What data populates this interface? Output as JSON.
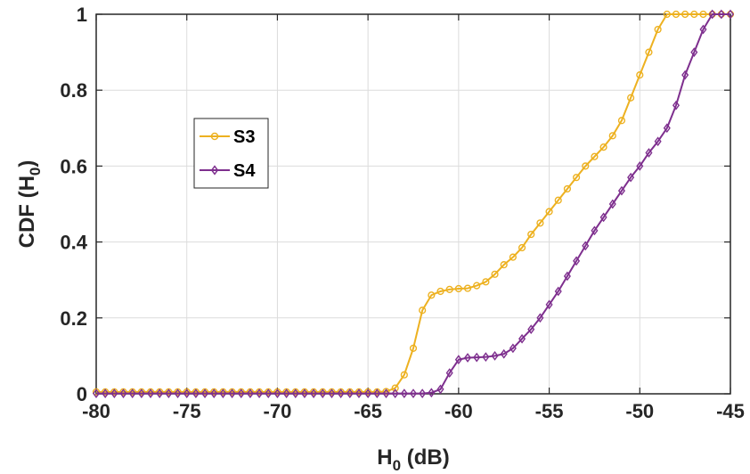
{
  "chart_data": {
    "type": "line",
    "xlabel": "H",
    "xlabel_sub": "0",
    "xlabel_suffix": " (dB)",
    "ylabel": "CDF (H",
    "ylabel_sub": "0",
    "ylabel_suffix": ")",
    "xlim": [
      -80,
      -45
    ],
    "ylim": [
      0,
      1
    ],
    "xticks": [
      "-80",
      "-75",
      "-70",
      "-65",
      "-60",
      "-55",
      "-50",
      "-45"
    ],
    "xtick_values": [
      -80,
      -75,
      -70,
      -65,
      -60,
      -55,
      -50,
      -45
    ],
    "yticks": [
      "0",
      "0.2",
      "0.4",
      "0.6",
      "0.8",
      "1"
    ],
    "ytick_values": [
      0,
      0.2,
      0.4,
      0.6,
      0.8,
      1
    ],
    "grid": true,
    "legend_position": "center-left",
    "series": [
      {
        "name": "S3",
        "color": "#EDB120",
        "marker": "circle",
        "x": [
          -80,
          -79.5,
          -79,
          -78.5,
          -78,
          -77.5,
          -77,
          -76.5,
          -76,
          -75.5,
          -75,
          -74.5,
          -74,
          -73.5,
          -73,
          -72.5,
          -72,
          -71.5,
          -71,
          -70.5,
          -70,
          -69.5,
          -69,
          -68.5,
          -68,
          -67.5,
          -67,
          -66.5,
          -66,
          -65.5,
          -65,
          -64.5,
          -64,
          -63.5,
          -63,
          -62.5,
          -62,
          -61.5,
          -61,
          -60.5,
          -60,
          -59.5,
          -59,
          -58.5,
          -58,
          -57.5,
          -57,
          -56.5,
          -56,
          -55.5,
          -55,
          -54.5,
          -54,
          -53.5,
          -53,
          -52.5,
          -52,
          -51.5,
          -51,
          -50.5,
          -50,
          -49.5,
          -49,
          -48.5,
          -48,
          -47.5,
          -47,
          -46.5,
          -46,
          -45.5,
          -45
        ],
        "y": [
          0.005,
          0.005,
          0.005,
          0.005,
          0.005,
          0.005,
          0.005,
          0.005,
          0.005,
          0.005,
          0.005,
          0.005,
          0.005,
          0.005,
          0.005,
          0.005,
          0.005,
          0.005,
          0.005,
          0.005,
          0.005,
          0.005,
          0.005,
          0.005,
          0.005,
          0.005,
          0.005,
          0.005,
          0.005,
          0.005,
          0.005,
          0.005,
          0.006,
          0.015,
          0.05,
          0.12,
          0.22,
          0.26,
          0.27,
          0.275,
          0.277,
          0.278,
          0.285,
          0.295,
          0.315,
          0.34,
          0.36,
          0.385,
          0.42,
          0.45,
          0.48,
          0.51,
          0.54,
          0.57,
          0.6,
          0.625,
          0.65,
          0.68,
          0.72,
          0.78,
          0.84,
          0.9,
          0.96,
          1.0,
          1.0,
          1.0,
          1.0,
          1.0,
          1.0,
          1.0,
          1.0
        ]
      },
      {
        "name": "S4",
        "color": "#7E2F8E",
        "marker": "diamond",
        "x": [
          -80,
          -79.5,
          -79,
          -78.5,
          -78,
          -77.5,
          -77,
          -76.5,
          -76,
          -75.5,
          -75,
          -74.5,
          -74,
          -73.5,
          -73,
          -72.5,
          -72,
          -71.5,
          -71,
          -70.5,
          -70,
          -69.5,
          -69,
          -68.5,
          -68,
          -67.5,
          -67,
          -66.5,
          -66,
          -65.5,
          -65,
          -64.5,
          -64,
          -63.5,
          -63,
          -62.5,
          -62,
          -61.5,
          -61,
          -60.5,
          -60,
          -59.5,
          -59,
          -58.5,
          -58,
          -57.5,
          -57,
          -56.5,
          -56,
          -55.5,
          -55,
          -54.5,
          -54,
          -53.5,
          -53,
          -52.5,
          -52,
          -51.5,
          -51,
          -50.5,
          -50,
          -49.5,
          -49,
          -48.5,
          -48,
          -47.5,
          -47,
          -46.5,
          -46,
          -45.5,
          -45
        ],
        "y": [
          0.001,
          0.001,
          0.001,
          0.001,
          0.001,
          0.001,
          0.001,
          0.001,
          0.001,
          0.001,
          0.001,
          0.001,
          0.001,
          0.001,
          0.001,
          0.001,
          0.001,
          0.001,
          0.001,
          0.001,
          0.001,
          0.001,
          0.001,
          0.001,
          0.001,
          0.001,
          0.001,
          0.001,
          0.001,
          0.001,
          0.001,
          0.001,
          0.001,
          0.001,
          0.001,
          0.001,
          0.001,
          0.003,
          0.012,
          0.055,
          0.09,
          0.095,
          0.096,
          0.097,
          0.1,
          0.105,
          0.12,
          0.145,
          0.17,
          0.2,
          0.235,
          0.27,
          0.31,
          0.35,
          0.39,
          0.43,
          0.465,
          0.5,
          0.535,
          0.57,
          0.6,
          0.635,
          0.665,
          0.7,
          0.76,
          0.84,
          0.9,
          0.96,
          1.0,
          1.0,
          1.0
        ]
      }
    ]
  }
}
